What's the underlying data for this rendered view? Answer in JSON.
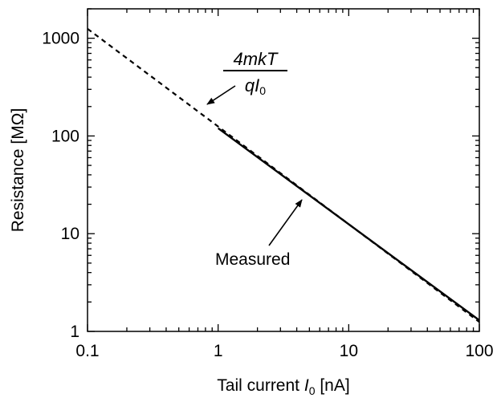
{
  "chart_data": {
    "type": "line",
    "x_scale": "log",
    "y_scale": "log",
    "xlim": [
      0.1,
      100
    ],
    "ylim": [
      1,
      2000
    ],
    "grid": false,
    "xlabel": {
      "prefix": "Tail current ",
      "symbol": "I",
      "subscript": "0",
      "suffix": " [nA]"
    },
    "ylabel": "Resistance [MΩ]",
    "x_ticks": [
      {
        "value": 0.1,
        "label": "0.1"
      },
      {
        "value": 1,
        "label": "1"
      },
      {
        "value": 10,
        "label": "10"
      },
      {
        "value": 100,
        "label": "100"
      }
    ],
    "y_ticks": [
      {
        "value": 1,
        "label": "1"
      },
      {
        "value": 10,
        "label": "10"
      },
      {
        "value": 100,
        "label": "100"
      },
      {
        "value": 1000,
        "label": "1000"
      }
    ],
    "series": [
      {
        "style": "dashed",
        "x": [
          0.1,
          100
        ],
        "y": [
          1250,
          1.25
        ]
      },
      {
        "style": "solid",
        "x": [
          1,
          100
        ],
        "y": [
          120,
          1.3
        ]
      }
    ],
    "annotations": [
      {
        "kind": "formula",
        "numerator": "4mkT",
        "denominator_symbol": "qI",
        "denominator_subscript": "0",
        "arrow_to": {
          "x": 0.8,
          "y": 190
        }
      },
      {
        "kind": "label",
        "text": "Measured",
        "arrow_to": {
          "x": 4.5,
          "y": 27
        }
      }
    ]
  }
}
